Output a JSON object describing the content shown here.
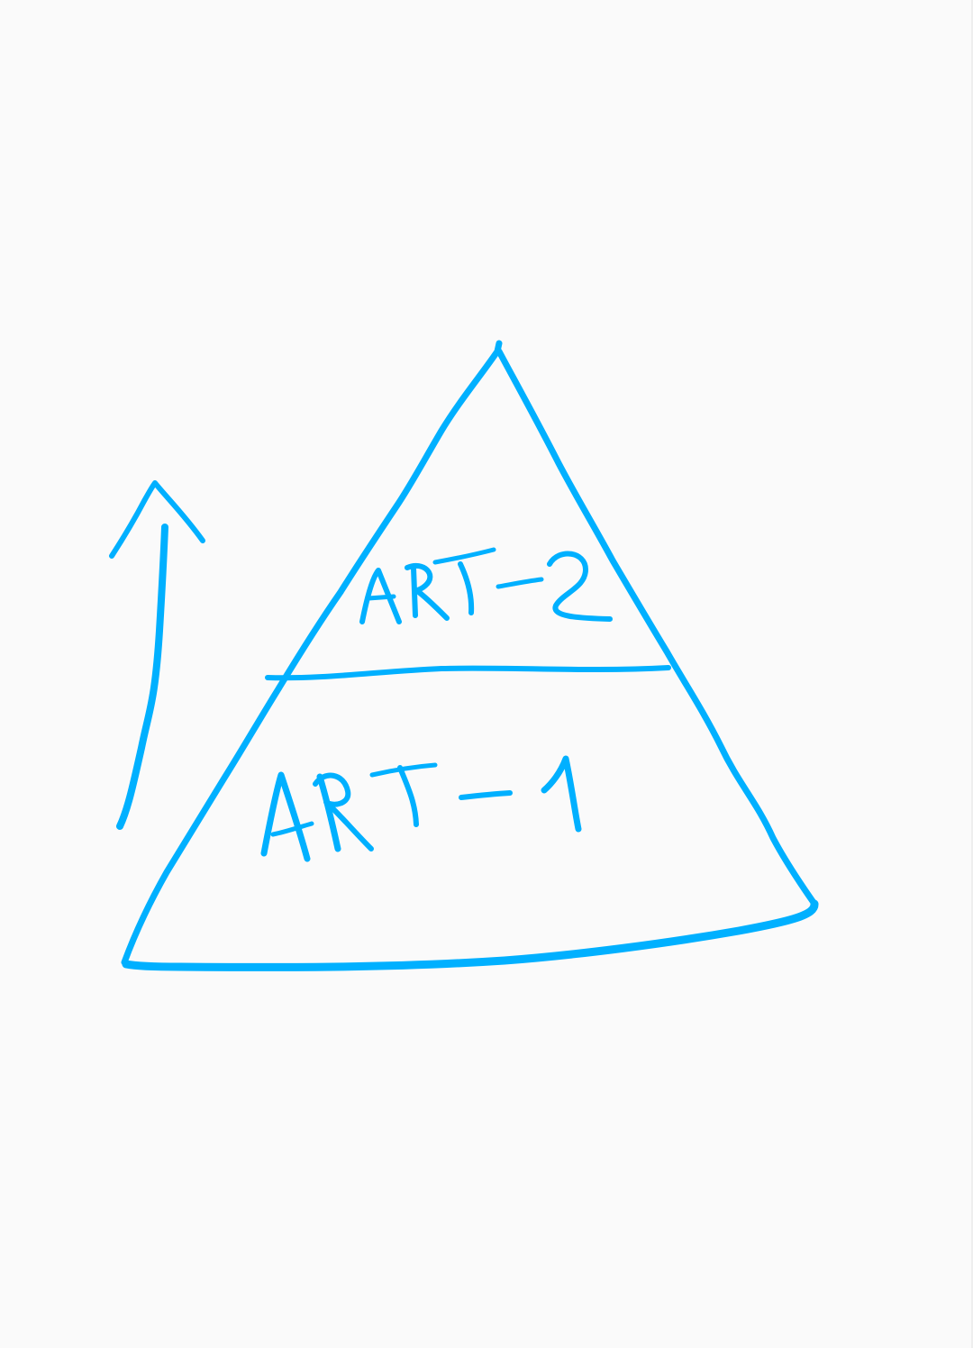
{
  "diagram": {
    "type": "pyramid",
    "ink_color": "#00b0ff",
    "background_color": "#fafafa",
    "levels": [
      {
        "label": "ART-2",
        "position": "top"
      },
      {
        "label": "ART-1",
        "position": "bottom"
      }
    ],
    "arrow": {
      "direction": "up",
      "side": "left"
    }
  }
}
